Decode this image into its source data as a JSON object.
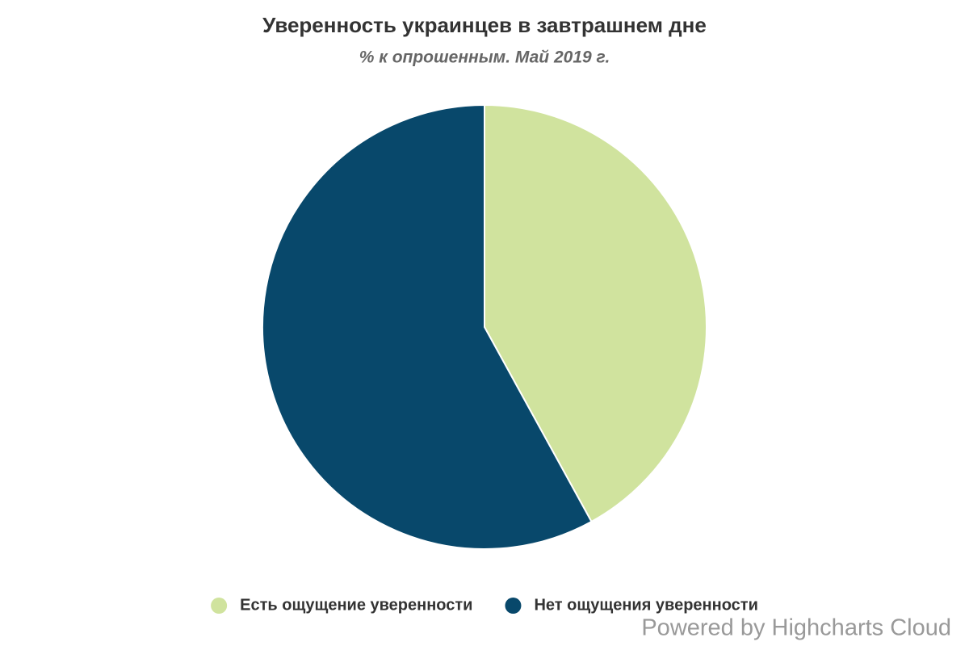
{
  "chart_data": {
    "type": "pie",
    "title": "Уверенность украинцев в завтрашнем дне",
    "subtitle": "% к опрошенным. Май 2019 г.",
    "series": [
      {
        "name": "Есть ощущение уверенности",
        "color": "#d0e39e",
        "value": 42
      },
      {
        "name": "Нет ощущения уверенности",
        "color": "#08486b",
        "value": 58
      }
    ],
    "legend": "bottom",
    "credits": "Powered by Highcharts Cloud"
  }
}
